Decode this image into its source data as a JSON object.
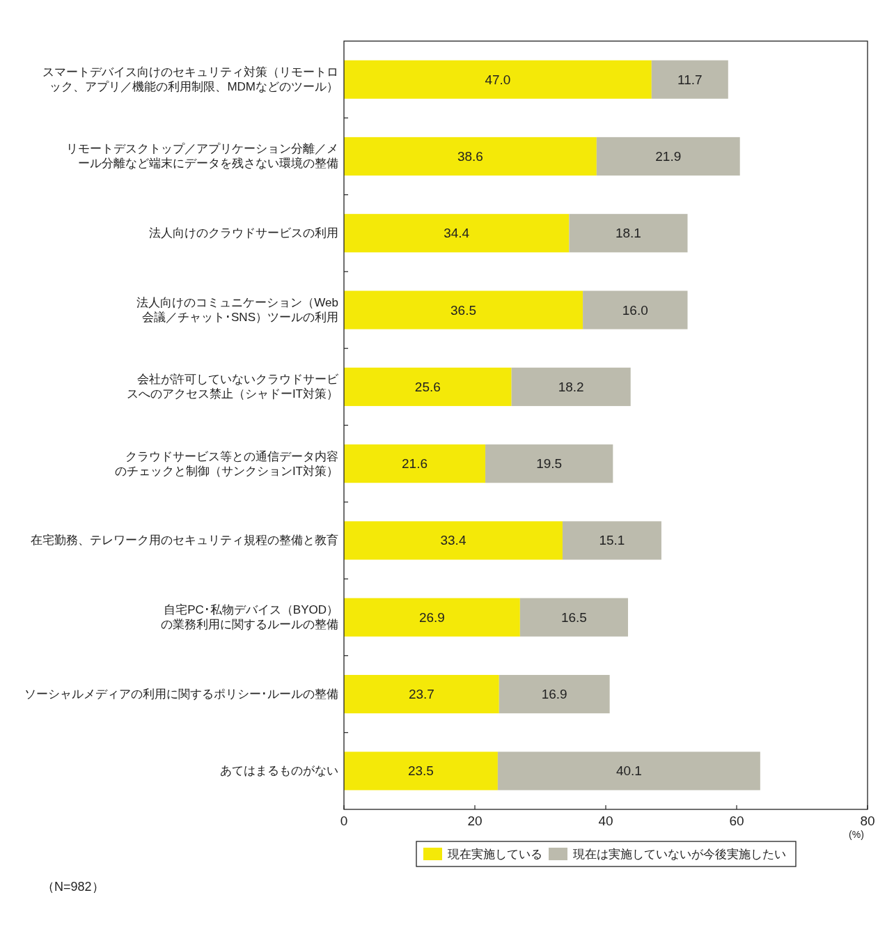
{
  "chart_data": {
    "type": "bar",
    "orientation": "horizontal",
    "stacked": true,
    "grid": false,
    "legend": "bottom",
    "xlabel": "(%)",
    "categories": [
      "スマートデバイス向けのセキュリティ対策（リモートロック、アプリ／機能の利用制限、MDMなどのツール）",
      "リモートデスクトップ／アプリケーション分離／メール分離など端末にデータを残さない環境の整備",
      "法人向けのクラウドサービスの利用",
      "法人向けのコミュニケーション（Web会議／チャット･SNS）ツールの利用",
      "会社が許可していないクラウドサービスへのアクセス禁止（シャドーIT対策）",
      "クラウドサービス等との通信データ内容のチェックと制御（サンクションIT対策）",
      "在宅勤務、テレワーク用のセキュリティ規程の整備と教育",
      "自宅PC･私物デバイス（BYOD）の業務利用に関するルールの整備",
      "ソーシャルメディアの利用に関するポリシー･ルールの整備",
      "あてはまるものがない"
    ],
    "series": [
      {
        "name": "現在実施している",
        "color": "#f4e908",
        "values": [
          47.0,
          38.6,
          34.4,
          36.5,
          25.6,
          21.6,
          33.4,
          26.9,
          23.7,
          23.5
        ],
        "value_labels": [
          "47.0",
          "38.6",
          "34.4",
          "36.5",
          "25.6",
          "21.6",
          "33.4",
          "26.9",
          "23.7",
          "23.5"
        ]
      },
      {
        "name": "現在は実施していないが今後実施したい",
        "color": "#bcbbad",
        "values": [
          11.7,
          21.9,
          18.1,
          16.0,
          18.2,
          19.5,
          15.1,
          16.5,
          16.9,
          40.1
        ],
        "value_labels": [
          "11.7",
          "21.9",
          "18.1",
          "16.0",
          "18.2",
          "19.5",
          "15.1",
          "16.5",
          "16.9",
          "40.1"
        ]
      }
    ],
    "xlim": [
      0,
      80
    ],
    "xticks": [
      0,
      20,
      40,
      60,
      80
    ],
    "annotations": [
      "（N=982）"
    ]
  }
}
